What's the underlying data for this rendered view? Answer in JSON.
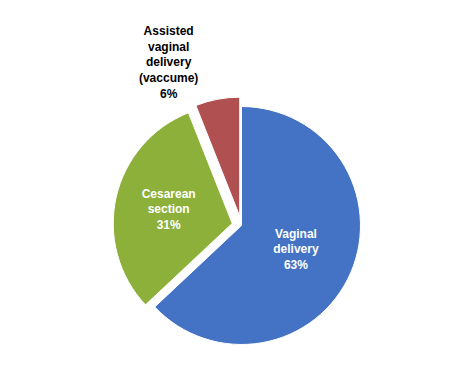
{
  "chart_data": {
    "type": "pie",
    "values": [
      63,
      31,
      6
    ],
    "value_labels": [
      "Vaginal\ndelivery\n63%",
      "Cesarean\nsection\n31%",
      "Assisted\nvaginal\ndelivery\n(vaccume)\n6%"
    ],
    "colors": [
      "#4472C4",
      "#8DB03B",
      "#B05050"
    ],
    "data_labels": true
  }
}
